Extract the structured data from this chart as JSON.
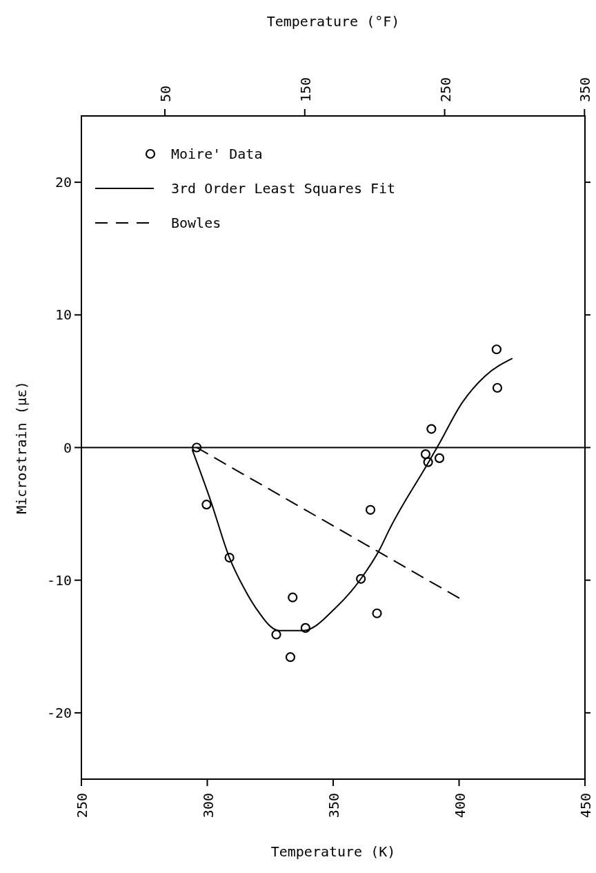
{
  "chart_data": {
    "type": "scatter",
    "xlabel": "Temperature (K)",
    "ylabel": "Microstrain (με)",
    "x2label": "Temperature (°F)",
    "xlim": [
      250,
      450
    ],
    "xticks": [
      250,
      300,
      350,
      400,
      450
    ],
    "ylim": [
      -25,
      25
    ],
    "yticks": [
      -20,
      -10,
      0,
      10,
      20
    ],
    "x2lim": [
      -9.67,
      350.33
    ],
    "x2ticks": [
      50,
      150,
      250,
      350
    ],
    "legend": "top left",
    "ref_lines": [
      {
        "axis": "y",
        "value": 0,
        "color": "#000000"
      }
    ],
    "series": [
      {
        "name": "Moire' Data",
        "marker": "circle",
        "color": "#000000",
        "x": [
          295.8,
          299.7,
          308.8,
          327.4,
          339.0,
          333.9,
          333.0,
          361.0,
          364.8,
          367.4,
          414.9,
          415.2,
          389.0,
          386.7,
          387.7,
          392.2
        ],
        "values": [
          0,
          -4.3,
          -8.3,
          -14.1,
          -13.6,
          -11.3,
          -15.8,
          -9.9,
          -4.7,
          -12.5,
          7.4,
          4.5,
          1.4,
          -0.5,
          -1.1,
          -0.8
        ]
      },
      {
        "name": "3rd Order Least Squares Fit",
        "type": "line",
        "line_style": "solid",
        "color": "#000000",
        "x": [
          294.1,
          301.5,
          308.8,
          314.3,
          319.3,
          328.5,
          338.1,
          350.9,
          361.0,
          368.7,
          372.0,
          387.6,
          391.7,
          401.3,
          410.4,
          421.0
        ],
        "values": [
          -0.2,
          -4.1,
          -8.3,
          -10.5,
          -12.1,
          -13.8,
          -13.8,
          -12.1,
          -9.9,
          -7.6,
          -6.3,
          -1.2,
          0.15,
          3.4,
          5.4,
          6.7
        ]
      },
      {
        "name": "Bowles",
        "type": "line",
        "line_style": "dashed",
        "color": "#000000",
        "x": [
          295.8,
          401.4
        ],
        "values": [
          0,
          -11.5
        ]
      }
    ]
  }
}
